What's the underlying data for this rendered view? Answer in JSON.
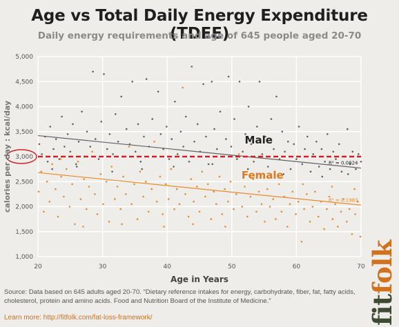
{
  "page": {
    "title": "Age vs Total Daily Energy Expenditure (TDEE)",
    "subtitle": "Daily energy requirements and age of 645 people aged 20-70",
    "source": "Source: Data based on 645 adults aged 20-70. “Dietary reference intakes for energy, carbohydrate, fiber, fat, fatty acids, cholesterol, protein and amino acids. Food and Nutrition Board of the Institute of Medicine.”",
    "learn_more": "Learn more: http://fitfolk.com/fat-loss-framework/",
    "brand_part1": "fit",
    "brand_part2": "folk"
  },
  "colors": {
    "male": "#5f6166",
    "female": "#e98a2c",
    "reference_line": "#d21f1f",
    "grid": "#ffffff",
    "plot_background": "#eeedea"
  },
  "chart_data": {
    "type": "scatter",
    "xlabel": "Age in Years",
    "ylabel": "calories per day : kcal/day",
    "xlim": [
      20,
      70
    ],
    "ylim": [
      1000,
      5000
    ],
    "x_ticks": [
      20,
      30,
      40,
      50,
      60,
      70
    ],
    "y_ticks": [
      1000,
      1500,
      2000,
      2500,
      3000,
      3500,
      4000,
      4500,
      5000
    ],
    "grid": true,
    "series": [
      {
        "name": "Male",
        "color": "#5f6166",
        "trend": {
          "x": [
            20,
            70
          ],
          "y": [
            3420,
            2770
          ]
        },
        "r_squared_label": "R² = 0.0824",
        "points": [
          [
            20.2,
            3250
          ],
          [
            20.6,
            3050
          ],
          [
            21.1,
            3400
          ],
          [
            21.5,
            2900
          ],
          [
            21.9,
            3600
          ],
          [
            22.4,
            3150
          ],
          [
            22.8,
            3350
          ],
          [
            23.3,
            2950
          ],
          [
            23.7,
            3800
          ],
          [
            24.1,
            3200
          ],
          [
            24.6,
            3450
          ],
          [
            25.0,
            3100
          ],
          [
            25.4,
            3650
          ],
          [
            25.9,
            2850
          ],
          [
            26.3,
            3300
          ],
          [
            26.8,
            3900
          ],
          [
            27.2,
            3000
          ],
          [
            27.6,
            3500
          ],
          [
            28.1,
            3200
          ],
          [
            28.5,
            4700
          ],
          [
            28.9,
            3350
          ],
          [
            29.4,
            2950
          ],
          [
            29.8,
            3700
          ],
          [
            30.2,
            4650
          ],
          [
            30.7,
            3150
          ],
          [
            31.1,
            3450
          ],
          [
            31.6,
            3050
          ],
          [
            32.0,
            3850
          ],
          [
            32.4,
            3300
          ],
          [
            32.9,
            4200
          ],
          [
            33.3,
            3000
          ],
          [
            33.7,
            3550
          ],
          [
            34.2,
            3250
          ],
          [
            34.6,
            4500
          ],
          [
            35.1,
            3100
          ],
          [
            35.5,
            3650
          ],
          [
            35.9,
            2900
          ],
          [
            36.4,
            3400
          ],
          [
            36.8,
            4550
          ],
          [
            37.2,
            3200
          ],
          [
            37.7,
            3750
          ],
          [
            38.1,
            3000
          ],
          [
            38.6,
            4300
          ],
          [
            39.0,
            3450
          ],
          [
            39.4,
            3150
          ],
          [
            39.9,
            3600
          ],
          [
            40.3,
            2950
          ],
          [
            40.7,
            3350
          ],
          [
            41.2,
            4100
          ],
          [
            41.6,
            3050
          ],
          [
            42.1,
            3500
          ],
          [
            42.5,
            3200
          ],
          [
            42.9,
            3800
          ],
          [
            43.4,
            2900
          ],
          [
            43.8,
            4800
          ],
          [
            44.2,
            3300
          ],
          [
            44.7,
            3650
          ],
          [
            45.1,
            3100
          ],
          [
            45.6,
            4450
          ],
          [
            46.0,
            3400
          ],
          [
            46.4,
            2850
          ],
          [
            46.9,
            4500
          ],
          [
            47.3,
            3550
          ],
          [
            47.7,
            3150
          ],
          [
            48.2,
            3900
          ],
          [
            48.6,
            3000
          ],
          [
            49.1,
            3350
          ],
          [
            49.5,
            4600
          ],
          [
            49.9,
            3200
          ],
          [
            50.4,
            3750
          ],
          [
            50.8,
            2950
          ],
          [
            51.2,
            4500
          ],
          [
            51.7,
            3100
          ],
          [
            52.1,
            3450
          ],
          [
            52.6,
            4000
          ],
          [
            53.0,
            3250
          ],
          [
            53.4,
            2900
          ],
          [
            53.9,
            3600
          ],
          [
            54.3,
            4500
          ],
          [
            54.7,
            3050
          ],
          [
            55.2,
            3400
          ],
          [
            55.6,
            2800
          ],
          [
            56.1,
            3750
          ],
          [
            56.5,
            3150
          ],
          [
            56.9,
            4200
          ],
          [
            57.4,
            2950
          ],
          [
            57.8,
            3500
          ],
          [
            58.2,
            3100
          ],
          [
            58.7,
            3300
          ],
          [
            59.1,
            2750
          ],
          [
            59.6,
            3250
          ],
          [
            60.0,
            2950
          ],
          [
            60.4,
            3600
          ],
          [
            60.9,
            2850
          ],
          [
            61.3,
            3150
          ],
          [
            61.7,
            3400
          ],
          [
            62.2,
            2700
          ],
          [
            62.6,
            3050
          ],
          [
            63.1,
            3300
          ],
          [
            63.5,
            2800
          ],
          [
            63.9,
            3150
          ],
          [
            64.4,
            2900
          ],
          [
            64.8,
            3450
          ],
          [
            65.2,
            2750
          ],
          [
            65.7,
            3100
          ],
          [
            66.1,
            2950
          ],
          [
            66.6,
            3250
          ],
          [
            67.0,
            2700
          ],
          [
            67.4,
            3000
          ],
          [
            67.9,
            3550
          ],
          [
            68.3,
            2850
          ],
          [
            68.7,
            3100
          ],
          [
            69.2,
            2750
          ],
          [
            69.6,
            3050
          ],
          [
            70.0,
            2900
          ],
          [
            22.2,
            2750
          ],
          [
            26.0,
            2800
          ],
          [
            31.5,
            2700
          ],
          [
            36.1,
            2750
          ],
          [
            41.0,
            2800
          ],
          [
            47.0,
            2850
          ],
          [
            52.5,
            2750
          ],
          [
            58.0,
            2650
          ],
          [
            64.0,
            2600
          ],
          [
            68.0,
            2650
          ]
        ]
      },
      {
        "name": "Female",
        "color": "#e98a2c",
        "trend": {
          "x": [
            20,
            70
          ],
          "y": [
            2680,
            2030
          ]
        },
        "r_squared_label": "R² = 0.1983",
        "points": [
          [
            20.1,
            2300
          ],
          [
            20.5,
            2700
          ],
          [
            20.9,
            1900
          ],
          [
            21.4,
            2500
          ],
          [
            21.8,
            2100
          ],
          [
            22.2,
            2850
          ],
          [
            22.7,
            2350
          ],
          [
            23.1,
            1800
          ],
          [
            23.6,
            2600
          ],
          [
            24.0,
            2200
          ],
          [
            24.4,
            2750
          ],
          [
            24.9,
            2000
          ],
          [
            25.3,
            2450
          ],
          [
            25.7,
            1650
          ],
          [
            26.2,
            2900
          ],
          [
            26.6,
            2150
          ],
          [
            27.1,
            2550
          ],
          [
            27.5,
            1950
          ],
          [
            27.9,
            2400
          ],
          [
            28.4,
            3100
          ],
          [
            28.8,
            2250
          ],
          [
            29.2,
            1850
          ],
          [
            29.7,
            2650
          ],
          [
            30.1,
            2050
          ],
          [
            30.6,
            2500
          ],
          [
            31.0,
            1700
          ],
          [
            31.4,
            2800
          ],
          [
            31.9,
            2150
          ],
          [
            32.3,
            2400
          ],
          [
            32.8,
            1950
          ],
          [
            33.2,
            2600
          ],
          [
            33.6,
            2250
          ],
          [
            34.1,
            3200
          ],
          [
            34.5,
            2050
          ],
          [
            34.9,
            2450
          ],
          [
            35.4,
            1750
          ],
          [
            35.8,
            2700
          ],
          [
            36.3,
            2200
          ],
          [
            36.7,
            2500
          ],
          [
            37.1,
            1900
          ],
          [
            37.6,
            2350
          ],
          [
            38.0,
            3300
          ],
          [
            38.4,
            2100
          ],
          [
            38.9,
            2600
          ],
          [
            39.3,
            1850
          ],
          [
            39.8,
            2450
          ],
          [
            40.2,
            2150
          ],
          [
            40.6,
            2750
          ],
          [
            41.1,
            1950
          ],
          [
            41.5,
            2350
          ],
          [
            41.9,
            2050
          ],
          [
            42.4,
            4380
          ],
          [
            42.8,
            2250
          ],
          [
            43.3,
            1800
          ],
          [
            43.7,
            2550
          ],
          [
            44.1,
            2100
          ],
          [
            44.6,
            2400
          ],
          [
            45.0,
            1900
          ],
          [
            45.4,
            2700
          ],
          [
            45.9,
            2200
          ],
          [
            46.3,
            2450
          ],
          [
            46.8,
            1750
          ],
          [
            47.2,
            2300
          ],
          [
            47.6,
            2050
          ],
          [
            48.1,
            2600
          ],
          [
            48.5,
            1850
          ],
          [
            48.9,
            2350
          ],
          [
            49.4,
            2100
          ],
          [
            49.8,
            2500
          ],
          [
            50.3,
            1950
          ],
          [
            50.7,
            2250
          ],
          [
            51.1,
            3050
          ],
          [
            51.6,
            2000
          ],
          [
            52.0,
            2400
          ],
          [
            52.4,
            1800
          ],
          [
            52.9,
            2200
          ],
          [
            53.3,
            2550
          ],
          [
            53.8,
            1900
          ],
          [
            54.2,
            2300
          ],
          [
            54.6,
            2050
          ],
          [
            55.1,
            1700
          ],
          [
            55.5,
            2350
          ],
          [
            55.9,
            2000
          ],
          [
            56.4,
            2150
          ],
          [
            56.8,
            1750
          ],
          [
            57.3,
            2450
          ],
          [
            57.7,
            1900
          ],
          [
            58.1,
            2200
          ],
          [
            58.6,
            1600
          ],
          [
            59.0,
            2050
          ],
          [
            59.4,
            2300
          ],
          [
            59.9,
            1850
          ],
          [
            60.3,
            2100
          ],
          [
            60.8,
            1300
          ],
          [
            61.2,
            1950
          ],
          [
            61.6,
            2250
          ],
          [
            62.1,
            1700
          ],
          [
            62.5,
            2000
          ],
          [
            62.9,
            2300
          ],
          [
            63.4,
            1800
          ],
          [
            63.8,
            2100
          ],
          [
            64.3,
            1550
          ],
          [
            64.7,
            1950
          ],
          [
            65.1,
            2200
          ],
          [
            65.6,
            1750
          ],
          [
            66.0,
            2050
          ],
          [
            66.4,
            1600
          ],
          [
            66.9,
            1900
          ],
          [
            67.3,
            2150
          ],
          [
            67.8,
            1700
          ],
          [
            68.2,
            1950
          ],
          [
            68.6,
            1450
          ],
          [
            69.1,
            1850
          ],
          [
            69.5,
            2100
          ],
          [
            69.9,
            1400
          ],
          [
            23.5,
            2950
          ],
          [
            27.0,
            1600
          ],
          [
            33.0,
            1650
          ],
          [
            39.5,
            1600
          ],
          [
            44.0,
            1650
          ],
          [
            49.0,
            1600
          ],
          [
            55.0,
            2600
          ],
          [
            61.0,
            2450
          ],
          [
            65.5,
            2400
          ],
          [
            69.0,
            2350
          ]
        ]
      }
    ],
    "annotations": [
      {
        "text": "Male",
        "x": 52,
        "y": 3260,
        "color": "#222222"
      },
      {
        "text": "Female",
        "x": 51.5,
        "y": 2560,
        "color": "#e07a1e"
      },
      {
        "type": "reference_line",
        "y": 3000,
        "color": "#d21f1f",
        "style": "dashed"
      },
      {
        "type": "circle_marker",
        "target": "y_tick_3000",
        "color": "#d21f1f"
      }
    ]
  }
}
